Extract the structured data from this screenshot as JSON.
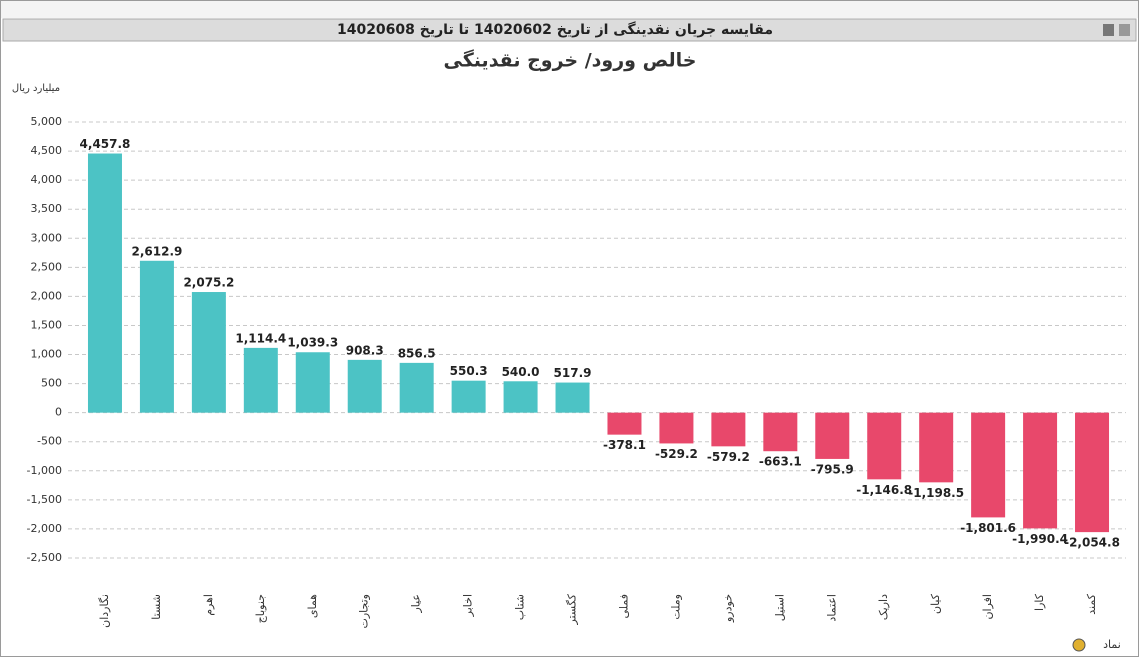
{
  "header": {
    "title": "مقایسه جریان نقدینگی از تاریخ 14020602 تا تاریخ 14020608"
  },
  "chart_data": {
    "type": "bar",
    "title": "خالص ورود/ خروج نقدینگی",
    "y_label": "میلیارد ریال",
    "x_label": "نماد",
    "categories": [
      "نگاردان",
      "شستا",
      "اهرم",
      "جنوباج",
      "همای",
      "وتجارت",
      "عیار",
      "اخابر",
      "شتاب",
      "کگستر",
      "فملی",
      "وملت",
      "خودرو",
      "استیل",
      "اعتماد",
      "داریک",
      "کیان",
      "افران",
      "کارا",
      "کمند"
    ],
    "values": [
      4457.8,
      2612.9,
      2075.2,
      1114.4,
      1039.3,
      908.3,
      856.5,
      550.3,
      540.0,
      517.9,
      -378.1,
      -529.2,
      -579.2,
      -663.1,
      -795.9,
      -1146.8,
      -1198.5,
      -1801.6,
      -1990.4,
      -2054.8
    ],
    "value_labels": [
      "4,457.8",
      "2,612.9",
      "2,075.2",
      "1,114.4",
      "1,039.3",
      "908.3",
      "856.5",
      "550.3",
      "540.0",
      "517.9",
      "-378.1",
      "-529.2",
      "-579.2",
      "-663.1",
      "-795.9",
      "-1,146.8",
      "-1,198.5",
      "-1,801.6",
      "-1,990.4",
      "-2,054.8"
    ],
    "positive_color": "#4cc3c5",
    "negative_color": "#e8486b",
    "ylim": [
      -2500,
      5000
    ],
    "yticks": [
      {
        "value": 5000,
        "label": "5,000"
      },
      {
        "value": 4500,
        "label": "4,500"
      },
      {
        "value": 4000,
        "label": "4,000"
      },
      {
        "value": 3500,
        "label": "3,500"
      },
      {
        "value": 3000,
        "label": "3,000"
      },
      {
        "value": 2500,
        "label": "2,500"
      },
      {
        "value": 2000,
        "label": "2,000"
      },
      {
        "value": 1500,
        "label": "1,500"
      },
      {
        "value": 1000,
        "label": "1,000"
      },
      500,
      0,
      -500,
      {
        "value": -1000,
        "label": "-1,000"
      },
      {
        "value": -1500,
        "label": "-1,500"
      },
      {
        "value": -2000,
        "label": "-2,000"
      },
      {
        "value": -2500,
        "label": "-2,500"
      }
    ],
    "grid": true
  }
}
